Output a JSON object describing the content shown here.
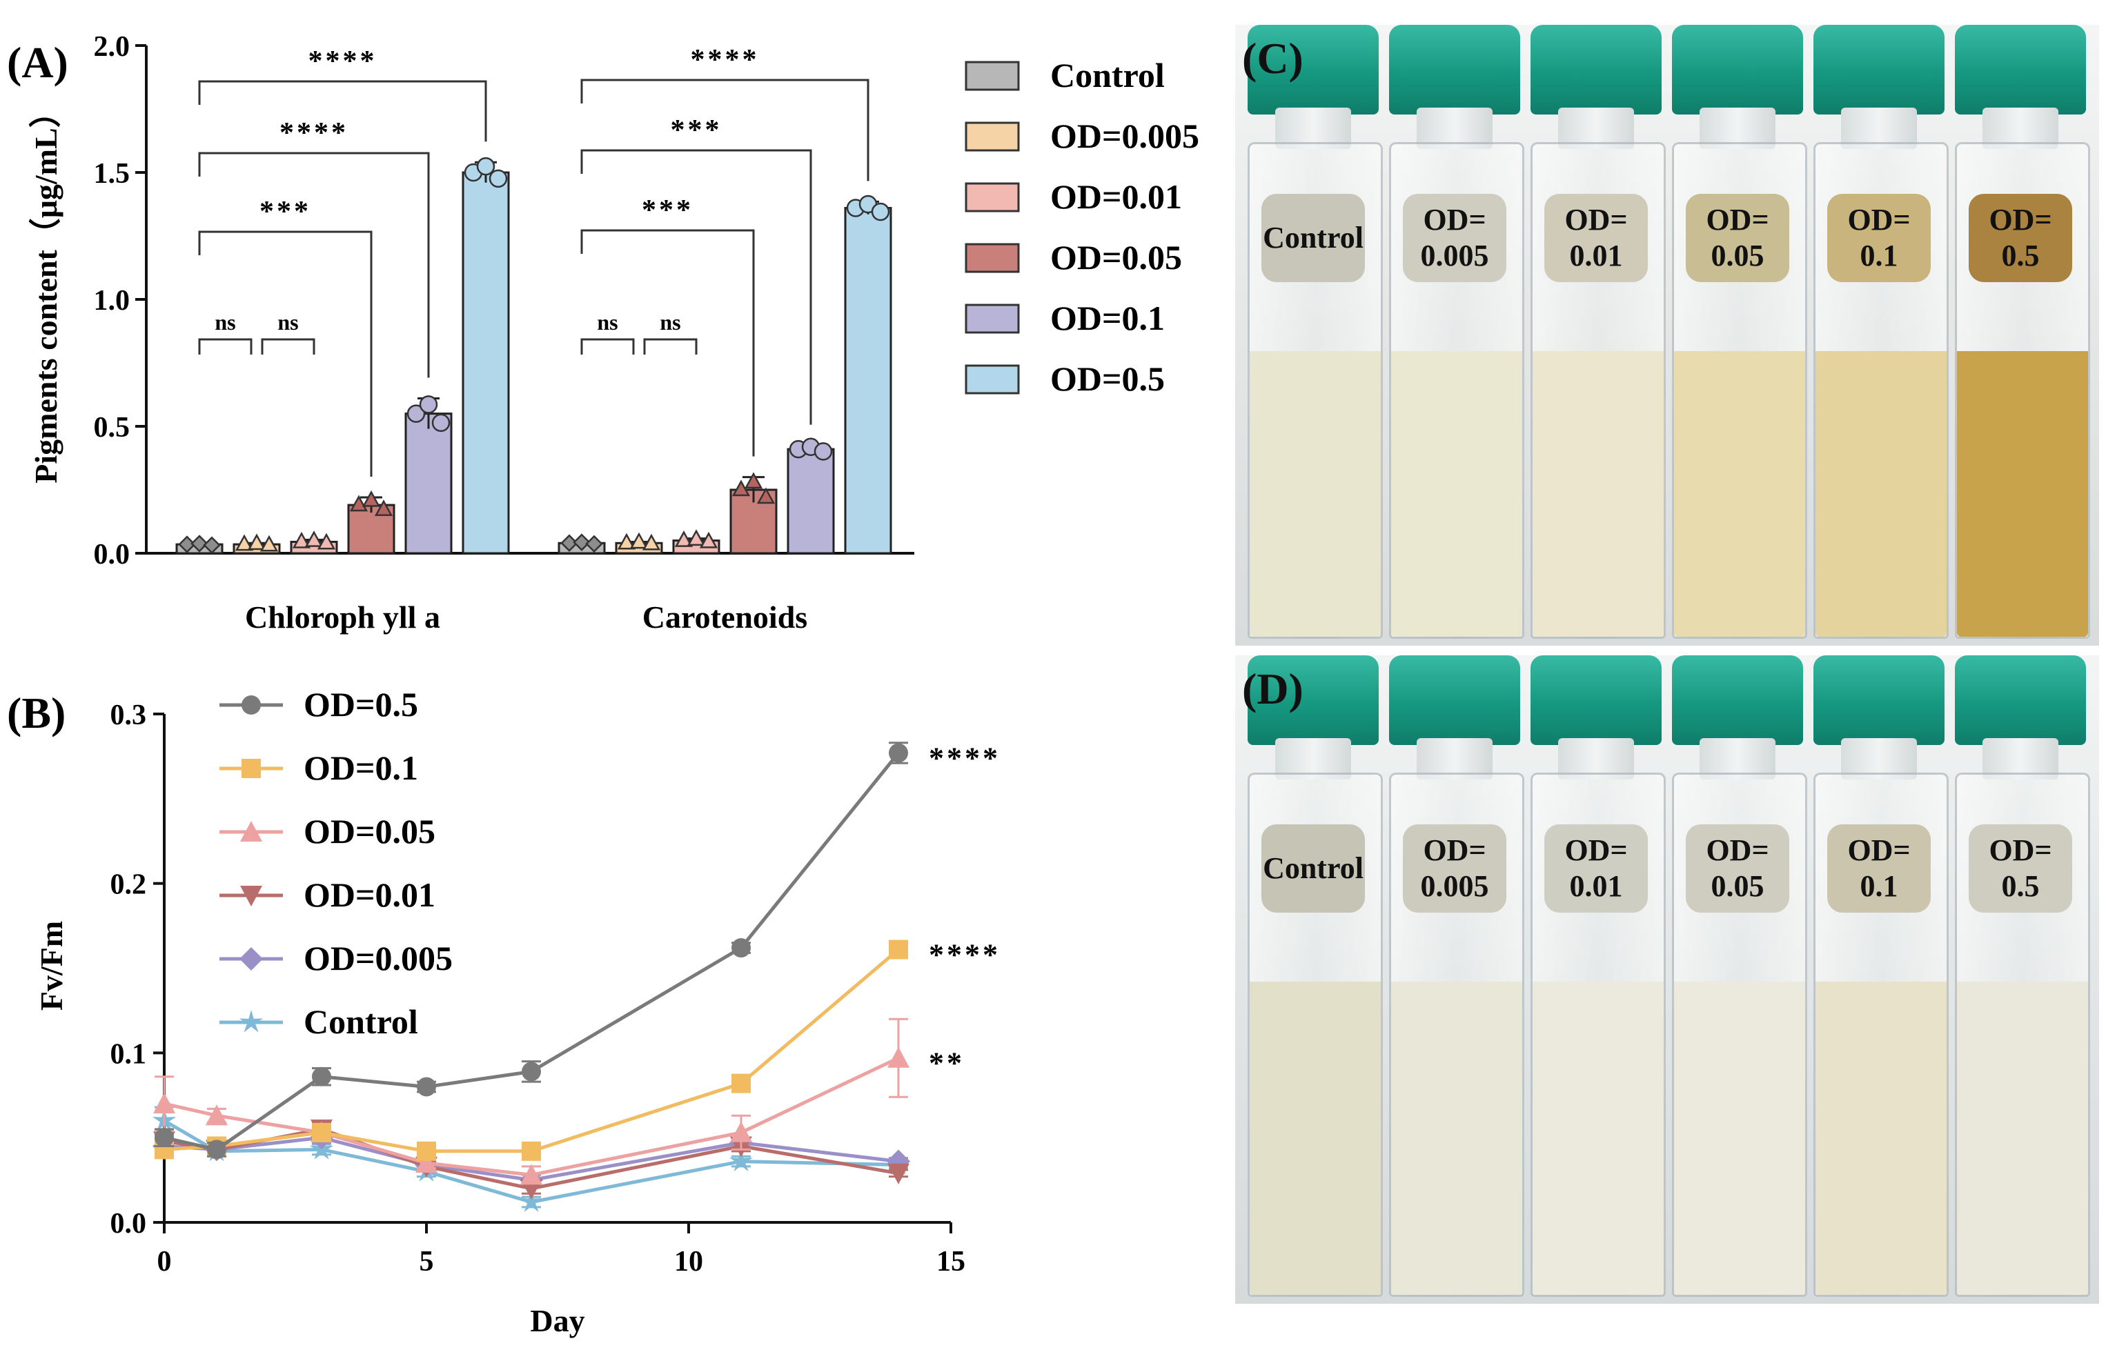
{
  "panel_labels": {
    "a": "(A)",
    "b": "(B)",
    "c": "(C)",
    "d": "(D)"
  },
  "chart_data": [
    {
      "type": "bar",
      "panel": "(A)",
      "ylabel": "Pigments content（μg/mL）",
      "xlabel": "",
      "ylim": [
        0,
        2.0
      ],
      "yticks": [
        "0.0",
        "0.5",
        "1.0",
        "1.5",
        "2.0"
      ],
      "categories": [
        "Chloroph yll a",
        "Carotenoids"
      ],
      "series": [
        {
          "name": "Control",
          "color": "#b7b7b7",
          "values": [
            0.035,
            0.04
          ],
          "errors": [
            0.005,
            0.005
          ]
        },
        {
          "name": "OD=0.005",
          "color": "#f6d3a6",
          "values": [
            0.035,
            0.04
          ],
          "errors": [
            0.005,
            0.005
          ]
        },
        {
          "name": "OD=0.01",
          "color": "#f1b9b2",
          "values": [
            0.045,
            0.05
          ],
          "errors": [
            0.008,
            0.008
          ]
        },
        {
          "name": "OD=0.05",
          "color": "#c9807a",
          "values": [
            0.19,
            0.25
          ],
          "errors": [
            0.03,
            0.05
          ]
        },
        {
          "name": "OD=0.1",
          "color": "#b8b4d8",
          "values": [
            0.55,
            0.41
          ],
          "errors": [
            0.06,
            0.015
          ]
        },
        {
          "name": "OD=0.5",
          "color": "#b3d7ea",
          "values": [
            1.5,
            1.36
          ],
          "errors": [
            0.04,
            0.025
          ]
        }
      ],
      "significance": [
        {
          "category": 0,
          "from": 0,
          "to": 1,
          "label": "ns"
        },
        {
          "category": 0,
          "from": 1,
          "to": 2,
          "label": "ns"
        },
        {
          "category": 0,
          "from": 0,
          "to": 3,
          "label": "***"
        },
        {
          "category": 0,
          "from": 0,
          "to": 4,
          "label": "****"
        },
        {
          "category": 0,
          "from": 0,
          "to": 5,
          "label": "****"
        },
        {
          "category": 1,
          "from": 0,
          "to": 1,
          "label": "ns"
        },
        {
          "category": 1,
          "from": 1,
          "to": 2,
          "label": "ns"
        },
        {
          "category": 1,
          "from": 0,
          "to": 3,
          "label": "***"
        },
        {
          "category": 1,
          "from": 0,
          "to": 4,
          "label": "***"
        },
        {
          "category": 1,
          "from": 0,
          "to": 5,
          "label": "****"
        }
      ],
      "legend": [
        "Control",
        "OD=0.005",
        "OD=0.01",
        "OD=0.05",
        "OD=0.1",
        "OD=0.5"
      ]
    },
    {
      "type": "line",
      "panel": "(B)",
      "xlabel": "Day",
      "ylabel": "Fv/Fm",
      "xlim": [
        0,
        15
      ],
      "ylim": [
        0,
        0.3
      ],
      "xticks": [
        "0",
        "5",
        "10",
        "15"
      ],
      "yticks": [
        "0.0",
        "0.1",
        "0.2",
        "0.3"
      ],
      "x": [
        0,
        1,
        3,
        5,
        7,
        11,
        14
      ],
      "series": [
        {
          "name": "OD=0.5",
          "color": "#7a7a7a",
          "marker": "circle",
          "values": [
            0.05,
            0.043,
            0.086,
            0.08,
            0.089,
            0.162,
            0.277
          ],
          "errors": [
            0.005,
            0.004,
            0.005,
            0.003,
            0.006,
            0.003,
            0.006
          ],
          "significance": "****"
        },
        {
          "name": "OD=0.1",
          "color": "#f2bb5f",
          "marker": "square",
          "values": [
            0.043,
            0.045,
            0.053,
            0.042,
            0.042,
            0.082,
            0.161
          ],
          "errors": [
            0.005,
            0.004,
            0.004,
            0.004,
            0.004,
            0.005,
            0.004
          ],
          "significance": "****"
        },
        {
          "name": "OD=0.05",
          "color": "#eda1a1",
          "marker": "triangle-up",
          "values": [
            0.07,
            0.063,
            0.053,
            0.035,
            0.028,
            0.053,
            0.097
          ],
          "errors": [
            0.016,
            0.004,
            0.004,
            0.003,
            0.005,
            0.01,
            0.023
          ],
          "significance": "**"
        },
        {
          "name": "OD=0.01",
          "color": "#b86d6a",
          "marker": "triangle-down",
          "values": [
            0.048,
            0.043,
            0.055,
            0.033,
            0.02,
            0.045,
            0.029
          ],
          "errors": [
            0.004,
            0.003,
            0.004,
            0.003,
            0.003,
            0.003,
            0.002
          ],
          "significance": ""
        },
        {
          "name": "OD=0.005",
          "color": "#9a8fc7",
          "marker": "diamond",
          "values": [
            0.045,
            0.043,
            0.05,
            0.034,
            0.025,
            0.047,
            0.036
          ],
          "errors": [
            0.004,
            0.003,
            0.003,
            0.003,
            0.003,
            0.003,
            0.002
          ],
          "significance": ""
        },
        {
          "name": "Control",
          "color": "#7fb9d8",
          "marker": "star",
          "values": [
            0.06,
            0.042,
            0.043,
            0.03,
            0.012,
            0.036,
            0.034
          ],
          "errors": [
            0.008,
            0.003,
            0.003,
            0.003,
            0.003,
            0.003,
            0.002
          ],
          "significance": ""
        }
      ]
    }
  ],
  "photo_c": {
    "bottles": [
      {
        "label": "Control",
        "liquid": "#e9e6cf",
        "label_bg": "#c8c6b8"
      },
      {
        "label": "OD=\n0.005",
        "liquid": "#ebe8d2",
        "label_bg": "#cfcdbf"
      },
      {
        "label": "OD=\n0.01",
        "liquid": "#ebe6cd",
        "label_bg": "#cfcbb8"
      },
      {
        "label": "OD=\n0.05",
        "liquid": "#e8dcae",
        "label_bg": "#c9bd93"
      },
      {
        "label": "OD=\n0.1",
        "liquid": "#e4d39d",
        "label_bg": "#c8b47c"
      },
      {
        "label": "OD=\n0.5",
        "liquid": "#c9a24c",
        "label_bg": "#a9833f"
      }
    ]
  },
  "photo_d": {
    "bottles": [
      {
        "label": "Control",
        "liquid": "#e2e0c8",
        "label_bg": "#c6c4b4"
      },
      {
        "label": "OD=\n0.005",
        "liquid": "#e9e8d8",
        "label_bg": "#cdcbbd"
      },
      {
        "label": "OD=\n0.01",
        "liquid": "#ebeadd",
        "label_bg": "#cfcec2"
      },
      {
        "label": "OD=\n0.05",
        "liquid": "#ebeadc",
        "label_bg": "#cfcdbf"
      },
      {
        "label": "OD=\n0.1",
        "liquid": "#e7e2c9",
        "label_bg": "#cbc5ad"
      },
      {
        "label": "OD=\n0.5",
        "liquid": "#e9e8da",
        "label_bg": "#cecdbf"
      }
    ]
  }
}
